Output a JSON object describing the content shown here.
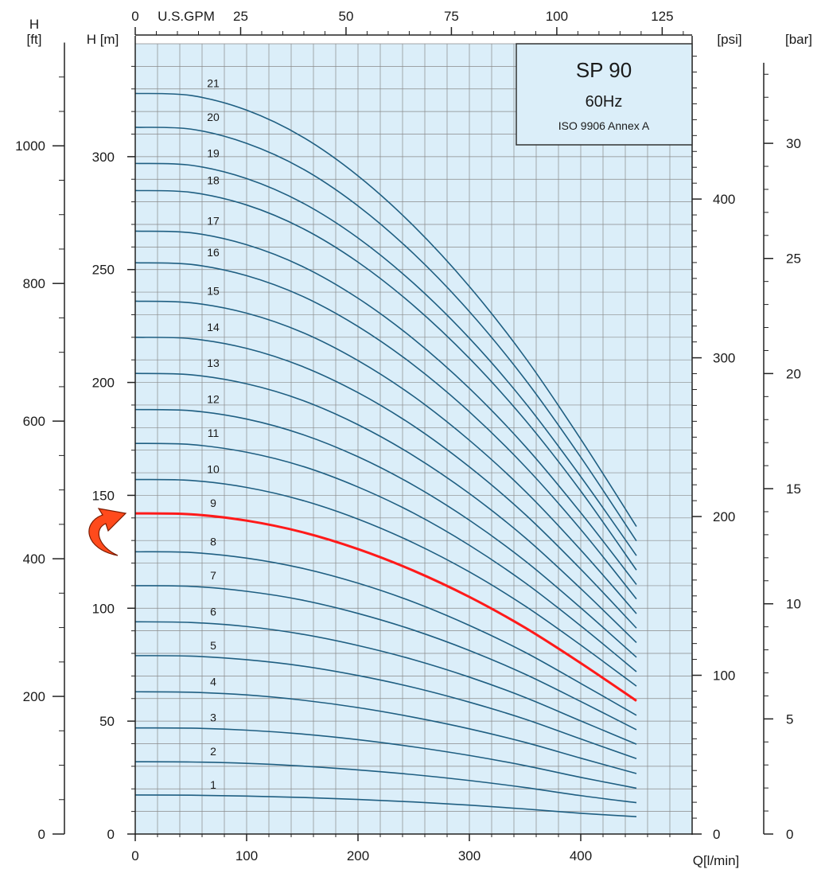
{
  "chart_data": {
    "type": "line",
    "title": "SP 90",
    "subtitle": "60Hz",
    "note": "ISO 9906 Annex A",
    "xlabel": "Q[l/min]",
    "ylabel": "H [m]",
    "xlim": [
      0,
      500
    ],
    "ylim": [
      0,
      350
    ],
    "grid": true,
    "x_ticks": [
      "0",
      "100",
      "200",
      "300",
      "400"
    ],
    "y_ticks": [
      "0",
      "50",
      "100",
      "150",
      "200",
      "250",
      "300"
    ],
    "top_axis": {
      "label": "U.S.GPM",
      "ticks": [
        "0",
        "25",
        "50",
        "75",
        "100",
        "125"
      ],
      "values": [
        0,
        25,
        50,
        75,
        100,
        125
      ]
    },
    "left_axis": {
      "label_top": "H",
      "label_unit": "[ft]",
      "ticks": [
        "0",
        "200",
        "400",
        "600",
        "800",
        "1000"
      ],
      "values": [
        0,
        200,
        400,
        600,
        800,
        1000
      ]
    },
    "psi_axis": {
      "label": "[psi]",
      "ticks": [
        "0",
        "100",
        "200",
        "300",
        "400"
      ],
      "values": [
        0,
        100,
        200,
        300,
        400
      ]
    },
    "bar_axis": {
      "label": "[bar]",
      "ticks": [
        "0",
        "5",
        "10",
        "15",
        "20",
        "25",
        "30"
      ],
      "values": [
        0,
        5,
        10,
        15,
        20,
        25,
        30
      ]
    },
    "x": [
      0,
      50,
      100,
      150,
      200,
      250,
      300,
      350,
      400,
      450
    ],
    "highlight": "9",
    "highlight_color": "#ff1a1a",
    "curve_color": "#1f5f82",
    "background_color": "#dbeef9",
    "series": [
      {
        "name": "1",
        "values": [
          17.3,
          17.2,
          16.8,
          16.2,
          15.3,
          14.2,
          12.8,
          11.1,
          9.2,
          7.7
        ]
      },
      {
        "name": "2",
        "values": [
          32.0,
          31.9,
          31.3,
          30.1,
          28.4,
          26.3,
          23.7,
          20.6,
          17.0,
          13.9
        ]
      },
      {
        "name": "3",
        "values": [
          47.0,
          46.9,
          46.0,
          44.3,
          41.8,
          38.6,
          34.8,
          30.3,
          25.1,
          20.3
        ]
      },
      {
        "name": "4",
        "values": [
          63.0,
          62.8,
          61.6,
          59.3,
          56.0,
          51.7,
          46.6,
          40.6,
          33.6,
          26.8
        ]
      },
      {
        "name": "5",
        "values": [
          79.0,
          78.8,
          77.2,
          74.4,
          70.2,
          64.9,
          58.4,
          50.9,
          42.1,
          33.4
        ]
      },
      {
        "name": "6",
        "values": [
          94.0,
          93.7,
          91.9,
          88.5,
          83.5,
          77.2,
          69.5,
          60.5,
          50.1,
          39.8
        ]
      },
      {
        "name": "7",
        "values": [
          110.0,
          109.7,
          107.5,
          103.6,
          97.7,
          90.3,
          81.3,
          70.8,
          58.7,
          46.2
        ]
      },
      {
        "name": "8",
        "values": [
          125.0,
          124.7,
          122.2,
          117.7,
          111.1,
          102.7,
          92.4,
          80.5,
          66.7,
          52.6
        ]
      },
      {
        "name": "9",
        "values": [
          142.0,
          141.6,
          138.8,
          133.7,
          126.2,
          116.6,
          105.0,
          91.4,
          75.7,
          59.0
        ]
      },
      {
        "name": "10",
        "values": [
          157.0,
          156.6,
          153.5,
          147.8,
          139.5,
          128.9,
          116.1,
          101.0,
          83.7,
          65.5
        ]
      },
      {
        "name": "11",
        "values": [
          173.0,
          172.5,
          169.1,
          162.9,
          153.7,
          142.1,
          127.9,
          111.3,
          92.2,
          71.9
        ]
      },
      {
        "name": "12",
        "values": [
          188.0,
          187.5,
          183.8,
          177.0,
          167.1,
          154.4,
          139.0,
          121.0,
          100.2,
          78.3
        ]
      },
      {
        "name": "13",
        "values": [
          204.0,
          203.4,
          199.4,
          192.1,
          181.3,
          167.5,
          150.8,
          131.3,
          108.7,
          84.8
        ]
      },
      {
        "name": "14",
        "values": [
          220.0,
          219.4,
          215.1,
          207.1,
          195.5,
          180.7,
          162.6,
          141.6,
          117.3,
          91.2
        ]
      },
      {
        "name": "15",
        "values": [
          236.0,
          235.3,
          230.7,
          222.2,
          209.7,
          193.8,
          174.4,
          151.9,
          125.8,
          97.6
        ]
      },
      {
        "name": "16",
        "values": [
          253.0,
          252.3,
          247.3,
          238.2,
          224.8,
          207.7,
          187.0,
          162.8,
          134.9,
          104.1
        ]
      },
      {
        "name": "17",
        "values": [
          267.0,
          266.3,
          261.0,
          251.4,
          237.3,
          219.2,
          197.4,
          171.8,
          142.3,
          110.5
        ]
      },
      {
        "name": "18",
        "values": [
          285.0,
          284.2,
          278.6,
          268.3,
          253.3,
          234.0,
          210.7,
          183.4,
          151.9,
          116.9
        ]
      },
      {
        "name": "19",
        "values": [
          297.0,
          296.2,
          290.3,
          279.6,
          264.0,
          243.9,
          219.6,
          191.1,
          158.3,
          123.3
        ]
      },
      {
        "name": "20",
        "values": [
          313.0,
          312.2,
          305.9,
          294.7,
          278.2,
          257.0,
          231.4,
          201.4,
          166.9,
          129.8
        ]
      },
      {
        "name": "21",
        "values": [
          328.0,
          327.1,
          320.6,
          308.8,
          291.5,
          269.3,
          242.5,
          211.1,
          174.9,
          136.2
        ]
      }
    ]
  }
}
